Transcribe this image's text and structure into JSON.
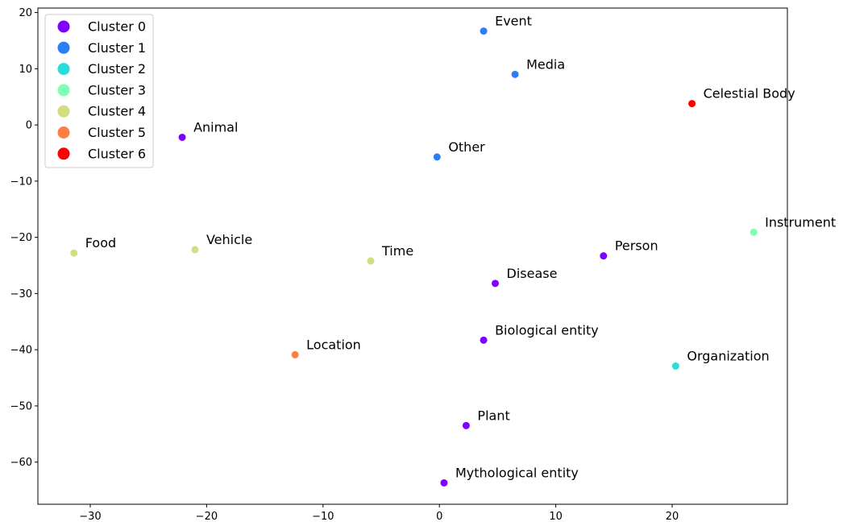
{
  "chart_data": {
    "type": "scatter",
    "title": "",
    "xlabel": "",
    "ylabel": "",
    "xlim": [
      -34.5,
      29.9
    ],
    "ylim": [
      -67.5,
      20.8
    ],
    "xticks": [
      -30,
      -20,
      -10,
      0,
      10,
      20
    ],
    "yticks": [
      20,
      10,
      0,
      -10,
      -20,
      -30,
      -40,
      -50,
      -60
    ],
    "grid": false,
    "legend_position": "top-left",
    "clusters": [
      {
        "name": "Cluster 0",
        "color": "#8000ff"
      },
      {
        "name": "Cluster 1",
        "color": "#2c7ef7"
      },
      {
        "name": "Cluster 2",
        "color": "#2adddd"
      },
      {
        "name": "Cluster 3",
        "color": "#80ffb4"
      },
      {
        "name": "Cluster 4",
        "color": "#d4dd80"
      },
      {
        "name": "Cluster 5",
        "color": "#ff7e41"
      },
      {
        "name": "Cluster 6",
        "color": "#ff0000"
      }
    ],
    "points": [
      {
        "label": "Event",
        "x": 3.8,
        "y": 16.7,
        "cluster": 1
      },
      {
        "label": "Media",
        "x": 6.5,
        "y": 9.0,
        "cluster": 1
      },
      {
        "label": "Celestial Body",
        "x": 21.7,
        "y": 3.8,
        "cluster": 6
      },
      {
        "label": "Animal",
        "x": -22.1,
        "y": -2.2,
        "cluster": 0
      },
      {
        "label": "Other",
        "x": -0.2,
        "y": -5.7,
        "cluster": 1
      },
      {
        "label": "Instrument",
        "x": 27.0,
        "y": -19.1,
        "cluster": 3
      },
      {
        "label": "Food",
        "x": -31.4,
        "y": -22.8,
        "cluster": 4
      },
      {
        "label": "Vehicle",
        "x": -21.0,
        "y": -22.2,
        "cluster": 4
      },
      {
        "label": "Time",
        "x": -5.9,
        "y": -24.2,
        "cluster": 4
      },
      {
        "label": "Person",
        "x": 14.1,
        "y": -23.3,
        "cluster": 0
      },
      {
        "label": "Disease",
        "x": 4.8,
        "y": -28.2,
        "cluster": 0
      },
      {
        "label": "Location",
        "x": -12.4,
        "y": -40.9,
        "cluster": 5
      },
      {
        "label": "Biological entity",
        "x": 3.8,
        "y": -38.3,
        "cluster": 0
      },
      {
        "label": "Organization",
        "x": 20.3,
        "y": -42.9,
        "cluster": 2
      },
      {
        "label": "Plant",
        "x": 2.3,
        "y": -53.5,
        "cluster": 0
      },
      {
        "label": "Mythological entity",
        "x": 0.4,
        "y": -63.7,
        "cluster": 0
      }
    ]
  }
}
